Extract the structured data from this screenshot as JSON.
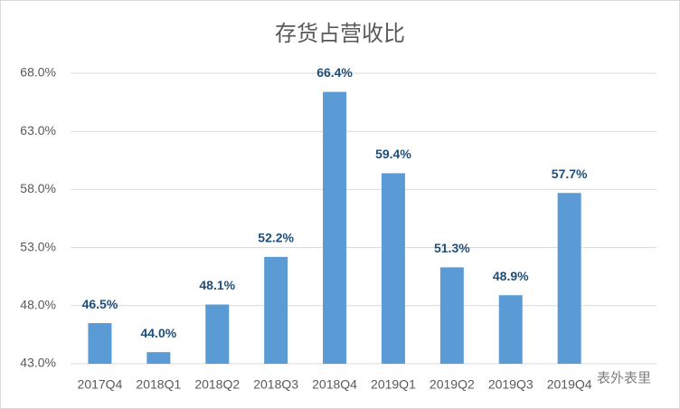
{
  "chart_data": {
    "type": "bar",
    "title": "存货占营收比",
    "categories": [
      "2017Q4",
      "2018Q1",
      "2018Q2",
      "2018Q3",
      "2018Q4",
      "2019Q1",
      "2019Q2",
      "2019Q3",
      "2019Q4"
    ],
    "values": [
      46.5,
      44.0,
      48.1,
      52.2,
      66.4,
      59.4,
      51.3,
      48.9,
      57.7
    ],
    "value_labels": [
      "46.5%",
      "44.0%",
      "48.1%",
      "52.2%",
      "66.4%",
      "59.4%",
      "51.3%",
      "48.9%",
      "57.7%"
    ],
    "color": "#5b9bd5",
    "ylim": [
      43,
      68
    ],
    "yticks": [
      {
        "value": 43,
        "label": "43.0%"
      },
      {
        "value": 48,
        "label": "48.0%"
      },
      {
        "value": 53,
        "label": "53.0%"
      },
      {
        "value": 58,
        "label": "58.0%"
      },
      {
        "value": 63,
        "label": "63.0%"
      },
      {
        "value": 68,
        "label": "68.0%"
      }
    ],
    "grid": true,
    "watermark": "表外表里"
  }
}
